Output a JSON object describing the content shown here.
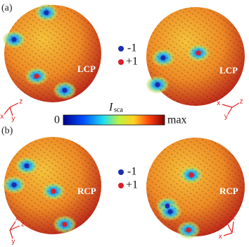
{
  "panels": [
    {
      "label": "(a)",
      "polarization": "LCP"
    },
    {
      "label": "(b)",
      "polarization": "RCP"
    }
  ],
  "legend": [
    "-1",
    "+1"
  ],
  "colorbar": {
    "min": "0",
    "title": "I",
    "title_subscript": "sca",
    "max": "max"
  },
  "axes": {
    "x": "x",
    "y": "y",
    "z": "z"
  }
}
